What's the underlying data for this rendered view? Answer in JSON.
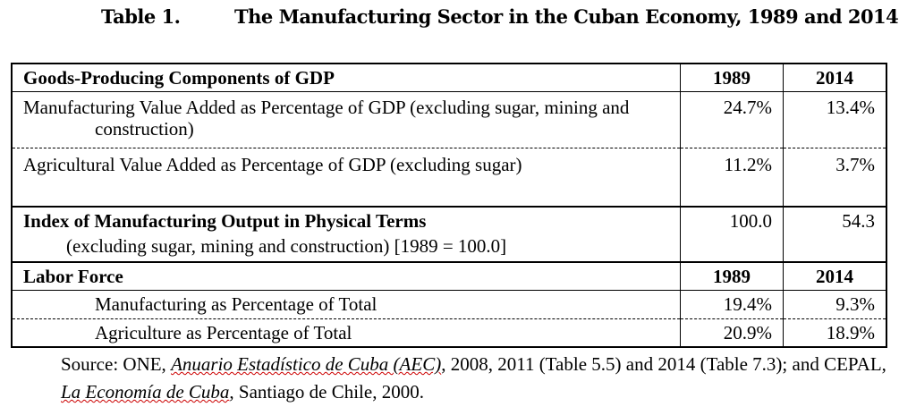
{
  "header": {
    "label": "Table 1.",
    "title": "The Manufacturing Sector in the Cuban Economy, 1989 and 2014"
  },
  "table": {
    "header": [
      "Goods-Producing Components of GDP",
      "1989",
      "2014"
    ],
    "rows": [
      [
        "Manufacturing Value Added as Percentage of  GDP (excluding sugar, mining and construction)",
        "24.7%",
        "13.4%"
      ],
      [
        "Agricultural  Value Added as Percentage of  GDP  (excluding sugar)",
        "11.2%",
        "3.7%"
      ]
    ],
    "index_row": {
      "label": "Index of Manufacturing Output in Physical Terms",
      "detail": "(excluding sugar, mining and construction) [1989 = 100.0]",
      "values": [
        "100.0",
        "54.3"
      ]
    },
    "labor_header": [
      "Labor Force",
      "1989",
      "2014"
    ],
    "labor_rows": [
      [
        "Manufacturing as Percentage of Total",
        "19.4%",
        "9.3%"
      ],
      [
        "Agriculture as Percentage of Total",
        "20.9%",
        "18.9%"
      ]
    ]
  },
  "source": [
    "Source: ONE, ",
    "Anuario Estadístico de Cuba (AEC)",
    ", 2008, 2011 (Table 5.5) and 2014 (Table 7.3); and CEPAL, ",
    "La Economía de Cuba",
    ", Santiago de Chile, 2000."
  ]
}
